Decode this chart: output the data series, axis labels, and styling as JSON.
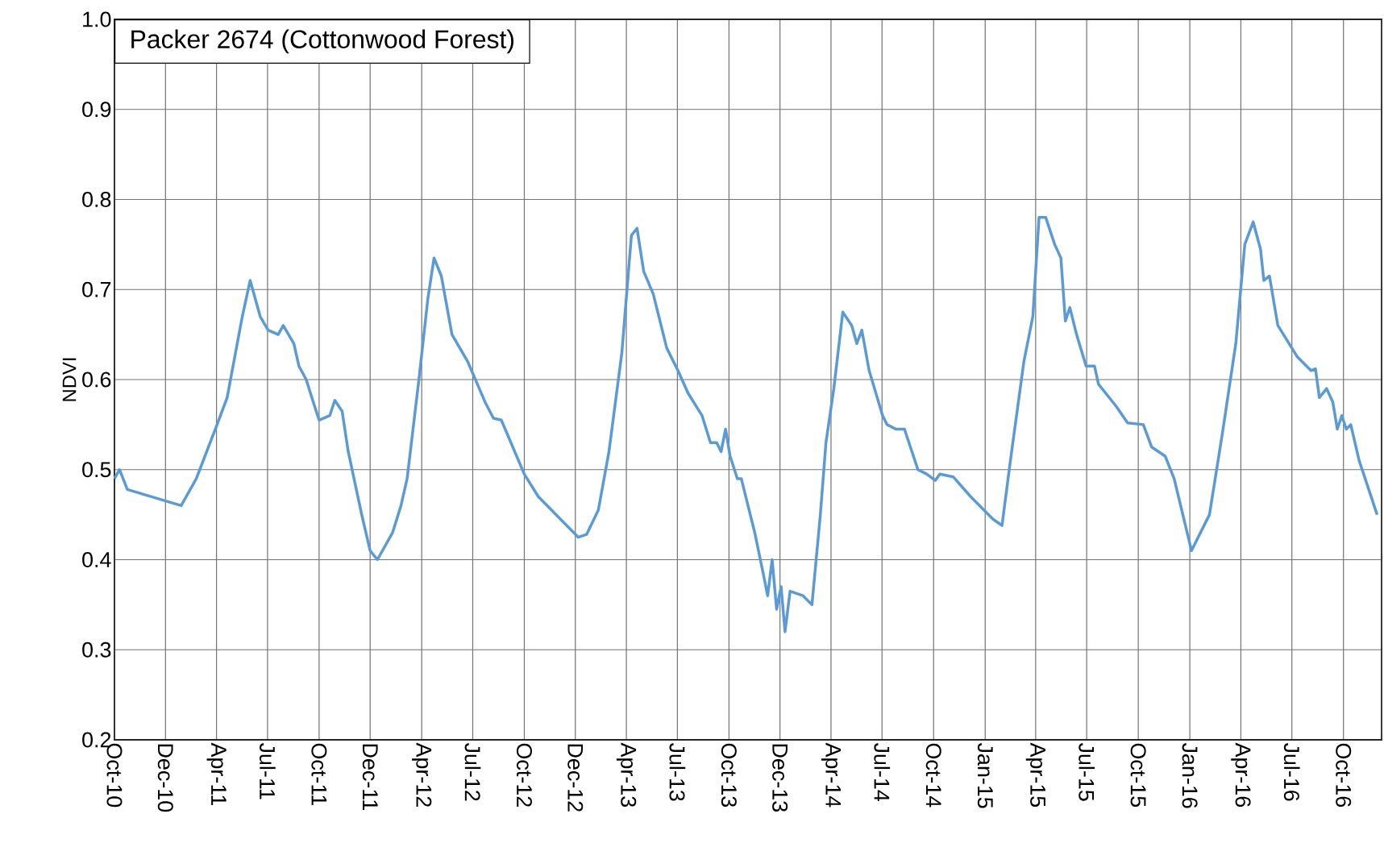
{
  "chart_data": {
    "type": "line",
    "title": "Packer 2674 (Cottonwood Forest)",
    "ylabel": "NDVI",
    "grid": true,
    "xlim": [
      "2010-10-01",
      "2016-12-08"
    ],
    "ylim": [
      0.2,
      1.0
    ],
    "yticks": [
      {
        "value": 0.2,
        "label": "0.2"
      },
      {
        "value": 0.3,
        "label": "0.3"
      },
      {
        "value": 0.4,
        "label": "0.4"
      },
      {
        "value": 0.5,
        "label": "0.5"
      },
      {
        "value": 0.6,
        "label": "0.6"
      },
      {
        "value": 0.7,
        "label": "0.7"
      },
      {
        "value": 0.8,
        "label": "0.8"
      },
      {
        "value": 0.9,
        "label": "0.9"
      },
      {
        "value": 1.0,
        "label": "1.0"
      }
    ],
    "xticks": [
      {
        "value": "2010-10-01",
        "label": "Oct-10"
      },
      {
        "value": "2010-12-31",
        "label": "Dec-10"
      },
      {
        "value": "2011-04-01",
        "label": "Apr-11"
      },
      {
        "value": "2011-07-01",
        "label": "Jul-11"
      },
      {
        "value": "2011-10-01",
        "label": "Oct-11"
      },
      {
        "value": "2011-12-31",
        "label": "Dec-11"
      },
      {
        "value": "2012-04-01",
        "label": "Apr-12"
      },
      {
        "value": "2012-07-01",
        "label": "Jul-12"
      },
      {
        "value": "2012-10-01",
        "label": "Oct-12"
      },
      {
        "value": "2012-12-31",
        "label": "Dec-12"
      },
      {
        "value": "2013-04-01",
        "label": "Apr-13"
      },
      {
        "value": "2013-07-01",
        "label": "Jul-13"
      },
      {
        "value": "2013-10-01",
        "label": "Oct-13"
      },
      {
        "value": "2013-12-31",
        "label": "Dec-13"
      },
      {
        "value": "2014-04-01",
        "label": "Apr-14"
      },
      {
        "value": "2014-07-01",
        "label": "Jul-14"
      },
      {
        "value": "2014-10-01",
        "label": "Oct-14"
      },
      {
        "value": "2015-01-01",
        "label": "Jan-15"
      },
      {
        "value": "2015-04-01",
        "label": "Apr-15"
      },
      {
        "value": "2015-07-01",
        "label": "Jul-15"
      },
      {
        "value": "2015-10-01",
        "label": "Oct-15"
      },
      {
        "value": "2016-01-01",
        "label": "Jan-16"
      },
      {
        "value": "2016-04-01",
        "label": "Apr-16"
      },
      {
        "value": "2016-07-01",
        "label": "Jul-16"
      },
      {
        "value": "2016-10-01",
        "label": "Oct-16"
      }
    ],
    "x": [
      "2010-10-01",
      "2010-10-10",
      "2010-10-24",
      "2011-01-28",
      "2011-02-24",
      "2011-04-02",
      "2011-04-20",
      "2011-05-17",
      "2011-05-31",
      "2011-06-18",
      "2011-07-02",
      "2011-07-20",
      "2011-07-29",
      "2011-08-17",
      "2011-08-26",
      "2011-09-08",
      "2011-09-18",
      "2011-10-01",
      "2011-10-20",
      "2011-10-29",
      "2011-11-11",
      "2011-11-22",
      "2011-12-16",
      "2011-12-31",
      "2012-01-13",
      "2012-02-09",
      "2012-02-24",
      "2012-03-06",
      "2012-03-27",
      "2012-04-12",
      "2012-04-23",
      "2012-05-06",
      "2012-05-25",
      "2012-06-22",
      "2012-07-23",
      "2012-08-07",
      "2012-08-21",
      "2012-10-01",
      "2012-10-26",
      "2013-01-05",
      "2013-01-20",
      "2013-02-10",
      "2013-03-01",
      "2013-03-24",
      "2013-04-10",
      "2013-04-20",
      "2013-05-02",
      "2013-05-19",
      "2013-06-12",
      "2013-07-02",
      "2013-07-20",
      "2013-08-14",
      "2013-08-29",
      "2013-09-09",
      "2013-09-17",
      "2013-09-25",
      "2013-10-03",
      "2013-10-16",
      "2013-10-23",
      "2013-11-16",
      "2013-12-01",
      "2013-12-09",
      "2013-12-17",
      "2013-12-25",
      "2014-01-02",
      "2014-01-09",
      "2014-01-18",
      "2014-02-10",
      "2014-02-26",
      "2014-03-13",
      "2014-03-23",
      "2014-04-06",
      "2014-04-22",
      "2014-05-08",
      "2014-05-17",
      "2014-05-26",
      "2014-06-08",
      "2014-07-02",
      "2014-07-10",
      "2014-07-26",
      "2014-08-10",
      "2014-08-18",
      "2014-09-03",
      "2014-09-19",
      "2014-10-04",
      "2014-10-12",
      "2014-11-05",
      "2014-12-06",
      "2015-01-15",
      "2015-01-31",
      "2015-02-15",
      "2015-03-11",
      "2015-03-27",
      "2015-04-07",
      "2015-04-19",
      "2015-05-05",
      "2015-05-16",
      "2015-05-24",
      "2015-06-01",
      "2015-06-13",
      "2015-06-30",
      "2015-07-15",
      "2015-07-22",
      "2015-08-23",
      "2015-09-12",
      "2015-10-10",
      "2015-10-25",
      "2015-11-18",
      "2015-12-04",
      "2016-01-04",
      "2016-02-05",
      "2016-02-28",
      "2016-03-23",
      "2016-04-08",
      "2016-04-23",
      "2016-05-06",
      "2016-05-12",
      "2016-05-22",
      "2016-06-06",
      "2016-07-11",
      "2016-08-04",
      "2016-08-12",
      "2016-08-19",
      "2016-09-01",
      "2016-09-12",
      "2016-09-20",
      "2016-09-28",
      "2016-10-06",
      "2016-10-14",
      "2016-10-29",
      "2016-11-30"
    ],
    "series": [
      {
        "color": "#5b9bd5",
        "values": [
          0.49,
          0.5,
          0.478,
          0.46,
          0.49,
          0.55,
          0.58,
          0.67,
          0.71,
          0.67,
          0.655,
          0.65,
          0.66,
          0.64,
          0.615,
          0.6,
          0.58,
          0.555,
          0.56,
          0.577,
          0.565,
          0.52,
          0.45,
          0.41,
          0.4,
          0.43,
          0.46,
          0.49,
          0.6,
          0.69,
          0.735,
          0.715,
          0.65,
          0.62,
          0.575,
          0.557,
          0.555,
          0.495,
          0.47,
          0.425,
          0.428,
          0.455,
          0.52,
          0.63,
          0.76,
          0.768,
          0.72,
          0.695,
          0.635,
          0.61,
          0.585,
          0.56,
          0.53,
          0.53,
          0.52,
          0.545,
          0.515,
          0.49,
          0.49,
          0.43,
          0.385,
          0.36,
          0.4,
          0.345,
          0.37,
          0.32,
          0.365,
          0.36,
          0.35,
          0.45,
          0.53,
          0.59,
          0.675,
          0.66,
          0.64,
          0.655,
          0.61,
          0.56,
          0.55,
          0.545,
          0.545,
          0.53,
          0.5,
          0.495,
          0.488,
          0.495,
          0.492,
          0.47,
          0.445,
          0.438,
          0.51,
          0.62,
          0.67,
          0.78,
          0.78,
          0.75,
          0.735,
          0.665,
          0.68,
          0.65,
          0.615,
          0.615,
          0.595,
          0.57,
          0.552,
          0.55,
          0.525,
          0.515,
          0.49,
          0.41,
          0.45,
          0.54,
          0.64,
          0.75,
          0.775,
          0.745,
          0.71,
          0.715,
          0.66,
          0.625,
          0.61,
          0.612,
          0.58,
          0.59,
          0.575,
          0.545,
          0.56,
          0.545,
          0.55,
          0.51,
          0.45
        ]
      }
    ]
  }
}
